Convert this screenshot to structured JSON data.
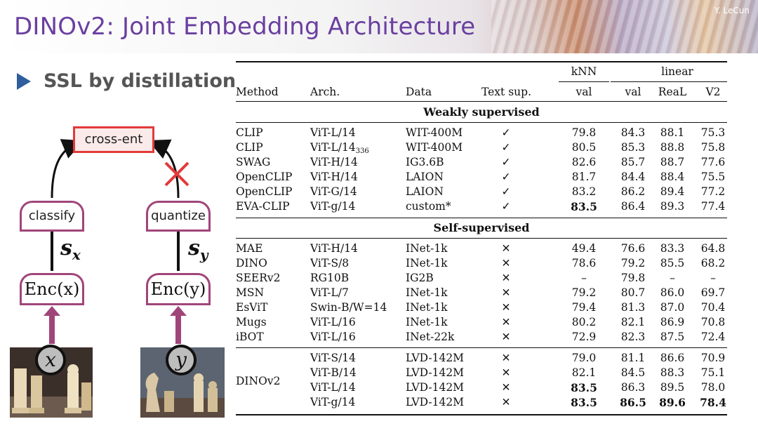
{
  "header": {
    "title": "DINOv2: Joint Embedding Architecture",
    "author": "Y. LeCun"
  },
  "bullet": "SSL by distillation",
  "diagram": {
    "loss_label": "cross-ent",
    "left_head": "classify",
    "right_head": "quantize",
    "left_encoder": "Enc(x)",
    "right_encoder": "Enc(y)",
    "left_repr": "s",
    "left_repr_sub": "x",
    "right_repr": "s",
    "right_repr_sub": "y",
    "left_input": "x",
    "right_input": "y",
    "colors": {
      "box": "#a0457a",
      "loss": "#e23a3a",
      "blocked": "#e23a3a",
      "title": "#6a3fa0",
      "bullet": "#2f5e9e"
    }
  },
  "table": {
    "group_headers": {
      "knn": "kNN",
      "linear": "linear"
    },
    "columns": [
      "Method",
      "Arch.",
      "Data",
      "Text sup.",
      "val",
      "val",
      "ReaL",
      "V2"
    ],
    "sections": [
      {
        "title": "Weakly supervised",
        "rows": [
          [
            "CLIP",
            "ViT-L/14",
            "WIT-400M",
            "✓",
            "79.8",
            "84.3",
            "88.1",
            "75.3"
          ],
          [
            "CLIP",
            "ViT-L/14",
            "WIT-400M",
            "✓",
            "80.5",
            "85.3",
            "88.8",
            "75.8"
          ],
          [
            "SWAG",
            "ViT-H/14",
            "IG3.6B",
            "✓",
            "82.6",
            "85.7",
            "88.7",
            "77.6"
          ],
          [
            "OpenCLIP",
            "ViT-H/14",
            "LAION",
            "✓",
            "81.7",
            "84.4",
            "88.4",
            "75.5"
          ],
          [
            "OpenCLIP",
            "ViT-G/14",
            "LAION",
            "✓",
            "83.2",
            "86.2",
            "89.4",
            "77.2"
          ],
          [
            "EVA-CLIP",
            "ViT-g/14",
            "custom*",
            "✓",
            "83.5",
            "86.4",
            "89.3",
            "77.4"
          ]
        ]
      },
      {
        "title": "Self-supervised",
        "rows": [
          [
            "MAE",
            "ViT-H/14",
            "INet-1k",
            "✕",
            "49.4",
            "76.6",
            "83.3",
            "64.8"
          ],
          [
            "DINO",
            "ViT-S/8",
            "INet-1k",
            "✕",
            "78.6",
            "79.2",
            "85.5",
            "68.2"
          ],
          [
            "SEERv2",
            "RG10B",
            "IG2B",
            "✕",
            "–",
            "79.8",
            "–",
            "–"
          ],
          [
            "MSN",
            "ViT-L/7",
            "INet-1k",
            "✕",
            "79.2",
            "80.7",
            "86.0",
            "69.7"
          ],
          [
            "EsViT",
            "Swin-B/W=14",
            "INet-1k",
            "✕",
            "79.4",
            "81.3",
            "87.0",
            "70.4"
          ],
          [
            "Mugs",
            "ViT-L/16",
            "INet-1k",
            "✕",
            "80.2",
            "82.1",
            "86.9",
            "70.8"
          ],
          [
            "iBOT",
            "ViT-L/16",
            "INet-22k",
            "✕",
            "72.9",
            "82.3",
            "87.5",
            "72.4"
          ]
        ]
      }
    ],
    "dinov2": {
      "method": "DINOv2",
      "rows": [
        [
          "ViT-S/14",
          "LVD-142M",
          "✕",
          "79.0",
          "81.1",
          "86.6",
          "70.9"
        ],
        [
          "ViT-B/14",
          "LVD-142M",
          "✕",
          "82.1",
          "84.5",
          "88.3",
          "75.1"
        ],
        [
          "ViT-L/14",
          "LVD-142M",
          "✕",
          "83.5",
          "86.3",
          "89.5",
          "78.0"
        ],
        [
          "ViT-g/14",
          "LVD-142M",
          "✕",
          "83.5",
          "86.5",
          "89.6",
          "78.4"
        ]
      ]
    },
    "clip_arch_subscript": "336"
  }
}
